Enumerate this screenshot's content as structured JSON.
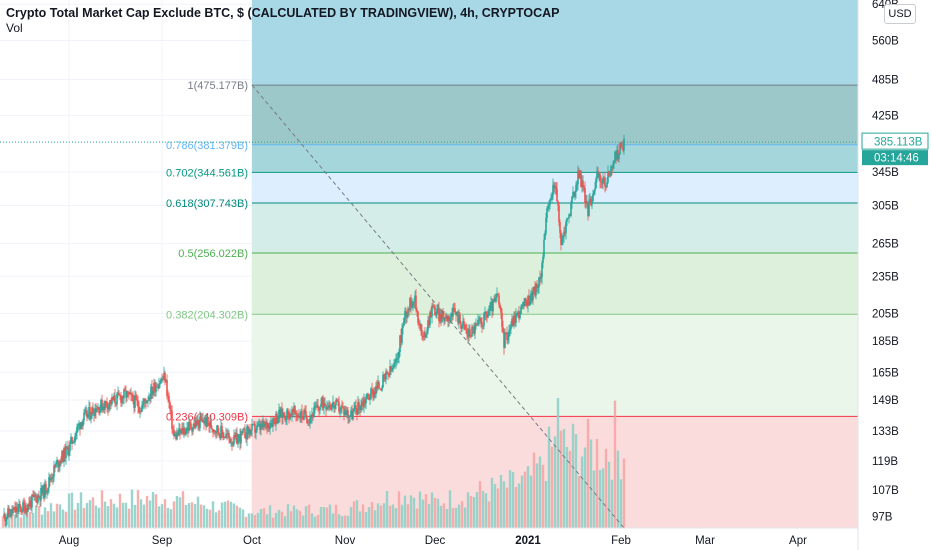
{
  "header": {
    "title": "Crypto Total Market Cap Exclude BTC, $ (CALCULATED BY TRADINGVIEW), 4h, CRYPTOCAP",
    "indicator": "Vol",
    "currency": "USD"
  },
  "chart_data": {
    "type": "candlestick",
    "y_scale": "log",
    "ylim": [
      93,
      650
    ],
    "y_ticks": [
      "97B",
      "107B",
      "119B",
      "133B",
      "149B",
      "165B",
      "185B",
      "205B",
      "235B",
      "265B",
      "305B",
      "345B",
      "385.113B",
      "425B",
      "485B",
      "560B",
      "640B"
    ],
    "y_tick_values": [
      97,
      107,
      119,
      133,
      149,
      165,
      185,
      205,
      235,
      265,
      305,
      345,
      385.113,
      425,
      485,
      560,
      640
    ],
    "x_ticks": [
      "Aug",
      "Sep",
      "Oct",
      "Nov",
      "Dec",
      "2021",
      "Feb",
      "Mar",
      "Apr"
    ],
    "x_tick_dates": [
      "2020-08-01",
      "2020-09-01",
      "2020-10-01",
      "2020-11-01",
      "2020-12-01",
      "2021-01-01",
      "2021-02-01",
      "2021-03-01",
      "2021-04-01"
    ],
    "xlim": [
      "2020-07-09",
      "2021-04-21"
    ],
    "last_price": {
      "label": "385.113B",
      "value": 385.113,
      "countdown": "03:14:46",
      "color": "#26a69a"
    },
    "price_path": [
      [
        "2020-07-10",
        97
      ],
      [
        "2020-07-18",
        101
      ],
      [
        "2020-07-24",
        107
      ],
      [
        "2020-07-28",
        118
      ],
      [
        "2020-08-01",
        125
      ],
      [
        "2020-08-05",
        138
      ],
      [
        "2020-08-10",
        145
      ],
      [
        "2020-08-15",
        148
      ],
      [
        "2020-08-20",
        152
      ],
      [
        "2020-08-25",
        145
      ],
      [
        "2020-08-30",
        158
      ],
      [
        "2020-09-02",
        162
      ],
      [
        "2020-09-05",
        130
      ],
      [
        "2020-09-10",
        135
      ],
      [
        "2020-09-15",
        138
      ],
      [
        "2020-09-20",
        133
      ],
      [
        "2020-09-25",
        128
      ],
      [
        "2020-09-30",
        133
      ],
      [
        "2020-10-05",
        135
      ],
      [
        "2020-10-10",
        141
      ],
      [
        "2020-10-15",
        142
      ],
      [
        "2020-10-20",
        140
      ],
      [
        "2020-10-25",
        148
      ],
      [
        "2020-10-30",
        145
      ],
      [
        "2020-11-03",
        141
      ],
      [
        "2020-11-08",
        150
      ],
      [
        "2020-11-13",
        158
      ],
      [
        "2020-11-18",
        170
      ],
      [
        "2020-11-21",
        205
      ],
      [
        "2020-11-24",
        218
      ],
      [
        "2020-11-27",
        185
      ],
      [
        "2020-11-30",
        210
      ],
      [
        "2020-12-03",
        202
      ],
      [
        "2020-12-08",
        205
      ],
      [
        "2020-12-12",
        190
      ],
      [
        "2020-12-17",
        200
      ],
      [
        "2020-12-22",
        218
      ],
      [
        "2020-12-24",
        185
      ],
      [
        "2020-12-27",
        200
      ],
      [
        "2021-01-01",
        215
      ],
      [
        "2021-01-05",
        230
      ],
      [
        "2021-01-07",
        290
      ],
      [
        "2021-01-10",
        335
      ],
      [
        "2021-01-12",
        265
      ],
      [
        "2021-01-15",
        300
      ],
      [
        "2021-01-18",
        345
      ],
      [
        "2021-01-21",
        300
      ],
      [
        "2021-01-24",
        340
      ],
      [
        "2021-01-27",
        330
      ],
      [
        "2021-01-29",
        355
      ],
      [
        "2021-01-31",
        370
      ],
      [
        "2021-02-02",
        385.113
      ]
    ],
    "volume_path": [
      [
        "2020-07-10",
        0.1
      ],
      [
        "2020-08-01",
        0.22
      ],
      [
        "2020-09-01",
        0.26
      ],
      [
        "2020-10-01",
        0.14
      ],
      [
        "2020-11-01",
        0.16
      ],
      [
        "2020-11-21",
        0.3
      ],
      [
        "2020-12-01",
        0.22
      ],
      [
        "2020-12-24",
        0.35
      ],
      [
        "2021-01-01",
        0.4
      ],
      [
        "2021-01-10",
        0.7
      ],
      [
        "2021-02-02",
        0.65
      ]
    ],
    "volume_spikes": [
      [
        "2021-01-11",
        1.0
      ],
      [
        "2021-01-30",
        0.98
      ],
      [
        "2021-01-05",
        0.55
      ],
      [
        "2021-01-20",
        0.62
      ]
    ],
    "fibonacci": {
      "start_date": "2020-10-01",
      "end_date": "2021-04-21",
      "levels": [
        {
          "label": "1(475.177B)",
          "ratio": 1,
          "value": 475.177,
          "color": "#787b86",
          "fill": "#9cc8c9"
        },
        {
          "label": "0.786(381.379B)",
          "ratio": 0.786,
          "value": 381.379,
          "color": "#64b5f6",
          "fill": "#a5d6dc"
        },
        {
          "label": "0.702(344.561B)",
          "ratio": 0.702,
          "value": 344.561,
          "color": "#089981",
          "fill": "#ddeeff"
        },
        {
          "label": "0.618(307.743B)",
          "ratio": 0.618,
          "value": 307.743,
          "color": "#00897b",
          "fill": "#d4ede9"
        },
        {
          "label": "0.5(256.022B)",
          "ratio": 0.5,
          "value": 256.022,
          "color": "#4caf50",
          "fill": "#dcf0dc"
        },
        {
          "label": "0.382(204.302B)",
          "ratio": 0.382,
          "value": 204.302,
          "color": "#81c784",
          "fill": "#eaf6ea"
        },
        {
          "label": "0.236(140.309B)",
          "ratio": 0.236,
          "value": 140.309,
          "color": "#f23645",
          "fill": "#fbdcdc"
        }
      ],
      "top_zone_fill": "#a8d8e6",
      "trendline_from": [
        "2020-10-01",
        475.177
      ],
      "trendline_to": [
        "2021-02-02",
        93
      ]
    },
    "colors": {
      "up": "#26a69a",
      "down": "#ef5350",
      "grid": "#f0f3fa"
    }
  }
}
